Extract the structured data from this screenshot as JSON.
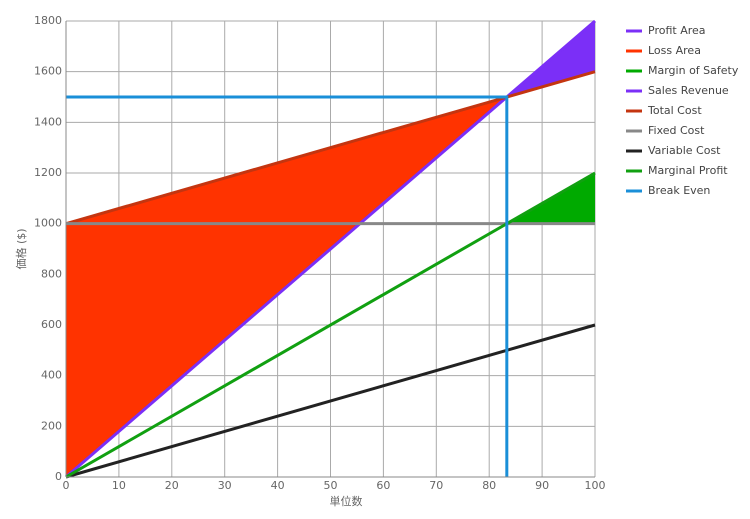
{
  "chart_data": {
    "type": "line",
    "xlabel": "単位数",
    "ylabel": "価格 ($)",
    "xlim": [
      0,
      100
    ],
    "ylim": [
      0,
      1800
    ],
    "xticks": [
      0,
      10,
      20,
      30,
      40,
      50,
      60,
      70,
      80,
      90,
      100
    ],
    "yticks": [
      0,
      200,
      400,
      600,
      800,
      1000,
      1200,
      1400,
      1600,
      1800
    ],
    "grid": true,
    "legend": "right",
    "series": [
      {
        "name": "Profit Area",
        "color": "#7b2ff7",
        "kind": "area",
        "x": [
          83.33,
          100
        ],
        "values": [
          1500,
          1800
        ],
        "base": [
          1500,
          1600
        ]
      },
      {
        "name": "Loss Area",
        "color": "#ff3300",
        "kind": "area",
        "x": [
          0,
          83.33
        ],
        "values": [
          1000,
          1500
        ],
        "base": [
          0,
          1500
        ]
      },
      {
        "name": "Margin of Safety",
        "color": "#00aa00",
        "kind": "area",
        "x": [
          83.33,
          100
        ],
        "values": [
          1000,
          1200
        ],
        "base": [
          1000,
          1000
        ]
      },
      {
        "name": "Sales Revenue",
        "color": "#7b2ff7",
        "kind": "line",
        "x": [
          0,
          100
        ],
        "values": [
          0,
          1800
        ]
      },
      {
        "name": "Total Cost",
        "color": "#c43510",
        "kind": "line",
        "x": [
          0,
          100
        ],
        "values": [
          1000,
          1600
        ]
      },
      {
        "name": "Fixed Cost",
        "color": "#888888",
        "kind": "line",
        "x": [
          0,
          100
        ],
        "values": [
          1000,
          1000
        ]
      },
      {
        "name": "Variable Cost",
        "color": "#222222",
        "kind": "line",
        "x": [
          0,
          100
        ],
        "values": [
          0,
          600
        ]
      },
      {
        "name": "Marginal Profit",
        "color": "#11a011",
        "kind": "line",
        "x": [
          0,
          100
        ],
        "values": [
          0,
          1200
        ]
      },
      {
        "name": "Break Even",
        "color": "#1a8fd8",
        "kind": "line",
        "x": [
          0,
          83.33,
          83.33
        ],
        "values": [
          1500,
          1500,
          0
        ]
      }
    ]
  }
}
